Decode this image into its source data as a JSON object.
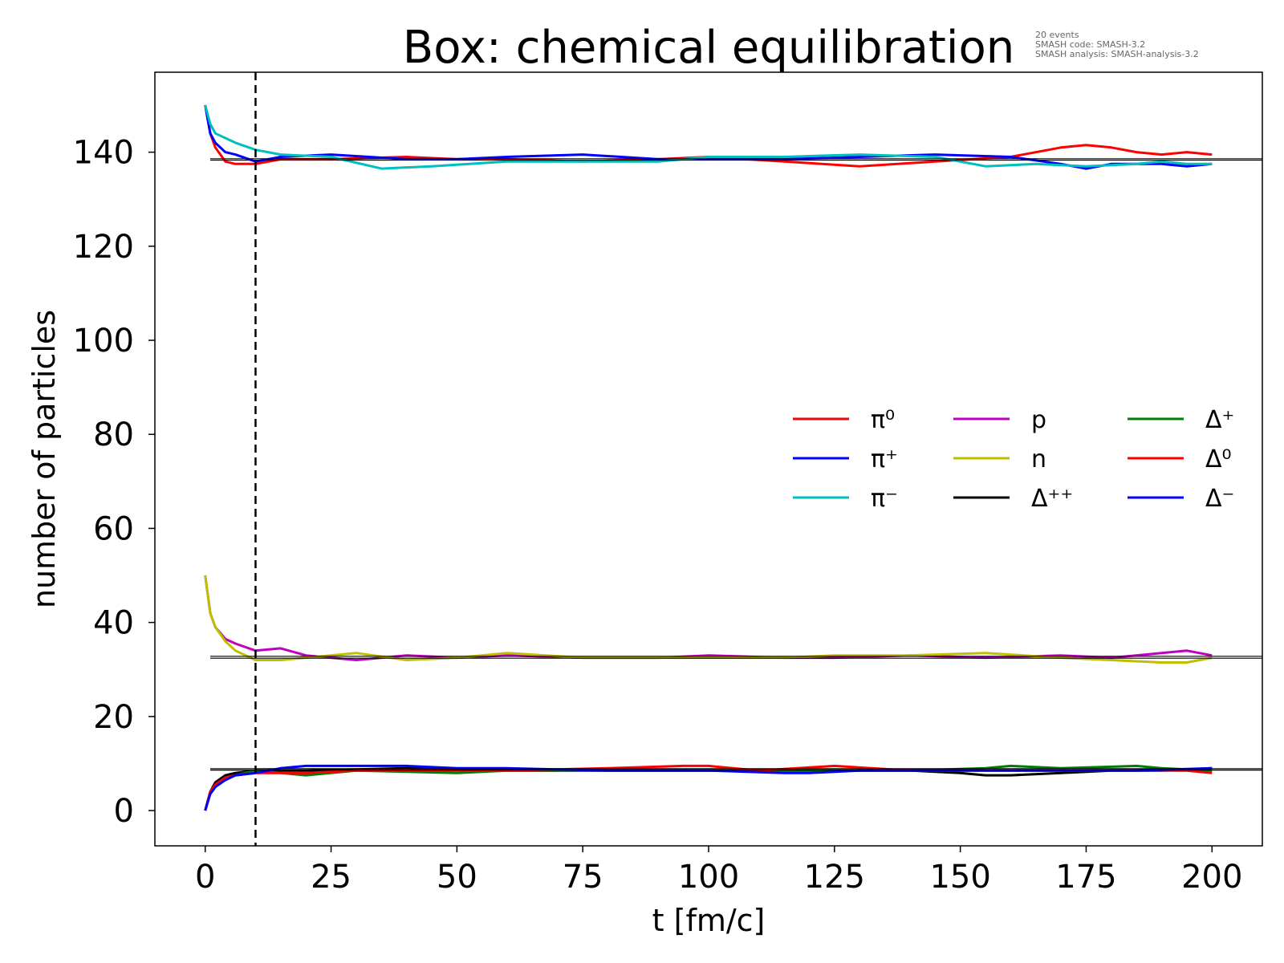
{
  "chart_data": {
    "type": "line",
    "title": "Box: chemical equilibration",
    "meta": {
      "line1": "20 events",
      "line2": "SMASH code:      SMASH-3.2",
      "line3": "SMASH analysis:  SMASH-analysis-3.2"
    },
    "xlabel": "t [fm/c]",
    "ylabel": "number of particles",
    "xlim": [
      -10,
      210
    ],
    "ylim": [
      -7.5,
      157
    ],
    "xticks": [
      0,
      25,
      50,
      75,
      100,
      125,
      150,
      175,
      200
    ],
    "yticks": [
      0,
      20,
      40,
      60,
      80,
      100,
      120,
      140
    ],
    "grid": false,
    "legend_position": "center-right",
    "legend_columns": 3,
    "marker_line": {
      "x": 10,
      "style": "dashed",
      "color": "#000000"
    },
    "equilibrium_lines": [
      {
        "y": 138.3,
        "x_start": 1,
        "x_end": 210,
        "color": "#000000"
      },
      {
        "y": 138.6,
        "x_start": 1,
        "x_end": 210,
        "color": "#000000"
      },
      {
        "y": 32.4,
        "x_start": 1,
        "x_end": 210,
        "color": "#000000"
      },
      {
        "y": 32.8,
        "x_start": 1,
        "x_end": 210,
        "color": "#000000"
      },
      {
        "y": 8.6,
        "x_start": 1,
        "x_end": 210,
        "color": "#000000"
      },
      {
        "y": 8.9,
        "x_start": 1,
        "x_end": 210,
        "color": "#000000"
      }
    ],
    "series": [
      {
        "name": "π⁰",
        "color": "#ff0000",
        "group": "pion",
        "x": [
          0,
          1,
          2,
          4,
          6,
          10,
          15,
          25,
          40,
          50,
          60,
          75,
          90,
          100,
          115,
          130,
          145,
          160,
          170,
          175,
          180,
          185,
          190,
          195,
          200
        ],
        "y": [
          150,
          144,
          141,
          138,
          137.5,
          137.5,
          138.5,
          138.5,
          139,
          138.5,
          138.5,
          138,
          138.5,
          139,
          138,
          137,
          138,
          139,
          141,
          141.5,
          141,
          140,
          139.5,
          140,
          139.5
        ]
      },
      {
        "name": "π⁺",
        "color": "#0000ff",
        "group": "pion",
        "x": [
          0,
          1,
          2,
          4,
          6,
          10,
          15,
          25,
          40,
          50,
          60,
          75,
          90,
          100,
          115,
          130,
          145,
          160,
          170,
          175,
          180,
          185,
          190,
          195,
          200
        ],
        "y": [
          150,
          144,
          142,
          140,
          139.5,
          138,
          139,
          139.5,
          138.5,
          138.5,
          139,
          139.5,
          138.5,
          138.5,
          138.5,
          139,
          139.5,
          139,
          137.5,
          136.5,
          137.5,
          137.5,
          137.5,
          137,
          137.5
        ]
      },
      {
        "name": "π⁻",
        "color": "#00bfbf",
        "group": "pion",
        "x": [
          0,
          1,
          2,
          4,
          6,
          10,
          15,
          25,
          35,
          45,
          60,
          75,
          90,
          100,
          115,
          130,
          145,
          155,
          165,
          175,
          185,
          190,
          195,
          200
        ],
        "y": [
          150,
          146,
          144,
          143,
          142,
          140.5,
          139.5,
          139,
          136.5,
          137,
          138,
          138,
          138,
          139,
          139,
          139.5,
          139,
          137,
          137.5,
          137,
          137.5,
          138,
          137.5,
          137.5
        ]
      },
      {
        "name": "p",
        "color": "#bf00bf",
        "group": "nucleon",
        "x": [
          0,
          1,
          2,
          4,
          6,
          10,
          15,
          20,
          30,
          40,
          50,
          60,
          75,
          90,
          100,
          115,
          125,
          140,
          155,
          170,
          180,
          190,
          195,
          200
        ],
        "y": [
          50,
          42,
          39,
          36.5,
          35.5,
          34,
          34.5,
          33,
          32,
          33,
          32.5,
          33,
          32.5,
          32.5,
          33,
          32.5,
          32.5,
          33,
          32.5,
          33,
          32.5,
          33.5,
          34,
          33
        ]
      },
      {
        "name": "n",
        "color": "#bfbf00",
        "group": "nucleon",
        "x": [
          0,
          1,
          2,
          4,
          6,
          10,
          15,
          20,
          30,
          40,
          50,
          60,
          75,
          90,
          100,
          115,
          125,
          140,
          155,
          170,
          180,
          190,
          195,
          200
        ],
        "y": [
          50,
          42,
          39,
          36,
          34,
          32,
          32,
          32.5,
          33.5,
          32,
          32.5,
          33.5,
          32.5,
          32.5,
          32.5,
          32.5,
          33,
          33,
          33.5,
          32.5,
          32,
          31.5,
          31.5,
          32.5
        ]
      },
      {
        "name": "Δ⁺⁺",
        "color": "#000000",
        "group": "delta",
        "x": [
          0,
          1,
          2,
          4,
          6,
          10,
          20,
          40,
          60,
          80,
          100,
          120,
          140,
          150,
          155,
          160,
          170,
          180,
          190,
          200
        ],
        "y": [
          0,
          4,
          6,
          7.5,
          8,
          8.5,
          8.5,
          9,
          8.5,
          8.5,
          8.5,
          8.5,
          8.5,
          8,
          7.5,
          7.5,
          8,
          8.5,
          8.5,
          9
        ]
      },
      {
        "name": "Δ⁺",
        "color": "#008000",
        "group": "delta",
        "x": [
          0,
          1,
          2,
          4,
          6,
          10,
          20,
          30,
          50,
          60,
          80,
          100,
          120,
          140,
          155,
          160,
          170,
          185,
          190,
          200
        ],
        "y": [
          0,
          4,
          5.5,
          7,
          7.5,
          8.5,
          7.5,
          8.5,
          8,
          8.5,
          8.5,
          8.5,
          8.5,
          8.5,
          9,
          9.5,
          9,
          9.5,
          9,
          8.5
        ]
      },
      {
        "name": "Δ⁰",
        "color": "#ff0000",
        "group": "delta",
        "x": [
          0,
          1,
          2,
          4,
          6,
          10,
          20,
          30,
          50,
          60,
          80,
          95,
          100,
          110,
          125,
          140,
          160,
          180,
          195,
          200
        ],
        "y": [
          0,
          4,
          5.5,
          7,
          7.5,
          8,
          8,
          8.5,
          8.5,
          8.5,
          9,
          9.5,
          9.5,
          8.5,
          9.5,
          8.5,
          8.5,
          8.5,
          8.5,
          8
        ]
      },
      {
        "name": "Δ⁻",
        "color": "#0000ff",
        "group": "delta",
        "x": [
          0,
          1,
          2,
          4,
          6,
          10,
          15,
          20,
          30,
          40,
          50,
          60,
          80,
          100,
          115,
          120,
          130,
          150,
          170,
          185,
          200
        ],
        "y": [
          0,
          3.5,
          5,
          6.5,
          7.5,
          8,
          9,
          9.5,
          9.5,
          9.5,
          9,
          9,
          8.5,
          8.5,
          8,
          8,
          8.5,
          8.5,
          8.5,
          8.5,
          9
        ]
      }
    ]
  }
}
